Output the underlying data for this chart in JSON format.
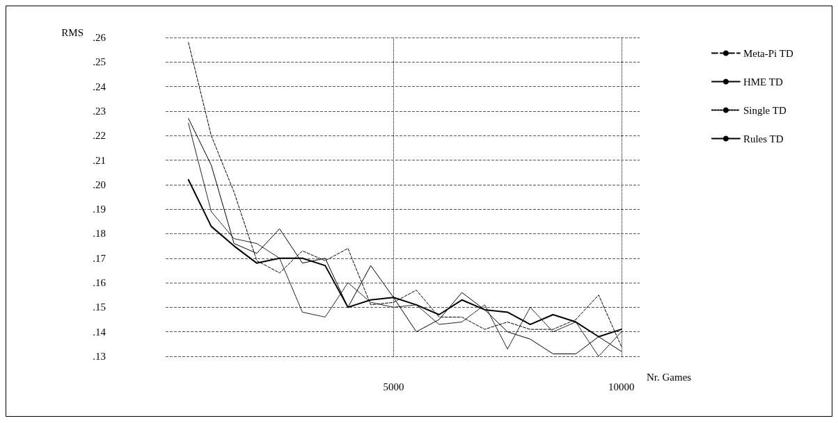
{
  "chart_data": {
    "type": "line",
    "xlabel": "Nr. Games",
    "ylabel": "RMS",
    "x": [
      500,
      1000,
      1500,
      2000,
      2500,
      3000,
      3500,
      4000,
      4500,
      5000,
      5500,
      6000,
      6500,
      7000,
      7500,
      8000,
      8500,
      9000,
      9500,
      10000
    ],
    "series": [
      {
        "name": "Meta-Pi TD",
        "color": "#000000",
        "line_style": "dashed",
        "values": [
          0.258,
          0.22,
          0.197,
          0.169,
          0.164,
          0.173,
          0.169,
          0.174,
          0.151,
          0.152,
          0.157,
          0.146,
          0.146,
          0.141,
          0.144,
          0.141,
          0.141,
          0.145,
          0.155,
          0.134
        ]
      },
      {
        "name": "HME TD",
        "color": "#000000",
        "line_style": "solid",
        "values": [
          0.227,
          0.208,
          0.176,
          0.172,
          0.182,
          0.168,
          0.17,
          0.15,
          0.167,
          0.154,
          0.14,
          0.145,
          0.156,
          0.149,
          0.14,
          0.137,
          0.131,
          0.131,
          0.138,
          0.132
        ]
      },
      {
        "name": "Single TD",
        "color": "#000000",
        "line_style": "dotted",
        "values": [
          0.225,
          0.189,
          0.178,
          0.176,
          0.17,
          0.148,
          0.146,
          0.16,
          0.152,
          0.15,
          0.151,
          0.143,
          0.144,
          0.151,
          0.133,
          0.15,
          0.14,
          0.144,
          0.13,
          0.14
        ]
      },
      {
        "name": "Rules TD",
        "color": "#000000",
        "line_style": "solid",
        "values": [
          0.202,
          0.183,
          0.175,
          0.168,
          0.17,
          0.17,
          0.167,
          0.15,
          0.153,
          0.154,
          0.151,
          0.147,
          0.153,
          0.149,
          0.148,
          0.143,
          0.147,
          0.144,
          0.138,
          0.141
        ]
      }
    ],
    "xlim": [
      0,
      10400
    ],
    "xticks": [
      5000,
      10000
    ],
    "ylim": [
      0.13,
      0.26
    ],
    "yticks": [
      {
        "value": 0.13,
        "label": ".13"
      },
      {
        "value": 0.14,
        "label": ".14"
      },
      {
        "value": 0.15,
        "label": ".15"
      },
      {
        "value": 0.16,
        "label": ".16"
      },
      {
        "value": 0.17,
        "label": ".17"
      },
      {
        "value": 0.18,
        "label": ".18"
      },
      {
        "value": 0.19,
        "label": ".19"
      },
      {
        "value": 0.2,
        "label": ".20"
      },
      {
        "value": 0.21,
        "label": ".21"
      },
      {
        "value": 0.22,
        "label": ".22"
      },
      {
        "value": 0.23,
        "label": ".23"
      },
      {
        "value": 0.24,
        "label": ".24"
      },
      {
        "value": 0.25,
        "label": ".25"
      },
      {
        "value": 0.26,
        "label": ".26"
      }
    ],
    "grid": true,
    "legend": "top right",
    "marker": "none"
  }
}
